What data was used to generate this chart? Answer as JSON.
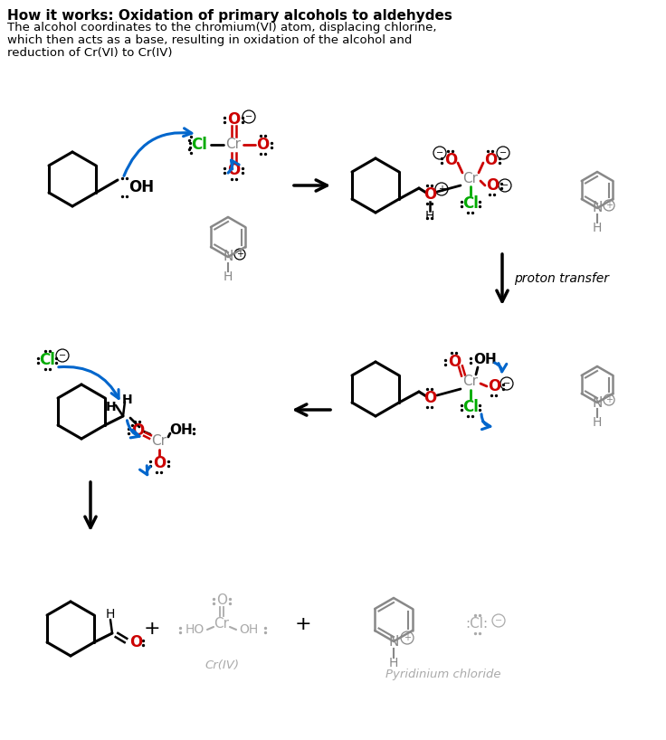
{
  "title_bold": "How it works: Oxidation of primary alcohols to aldehydes",
  "subtitle_line1": "The alcohol coordinates to the chromium(VI) atom, displacing chlorine,",
  "subtitle_line2": "which then acts as a base, resulting in oxidation of the alcohol and",
  "subtitle_line3": "reduction of Cr(VI) to Cr(IV)",
  "proton_transfer": "proton transfer",
  "cr_iv_label": "Cr(IV)",
  "pyridinium_label": "Pyridinium chloride",
  "red": "#cc0000",
  "green": "#00aa00",
  "gray": "#888888",
  "light_gray": "#aaaaaa",
  "blue": "#0066cc",
  "black": "#000000"
}
